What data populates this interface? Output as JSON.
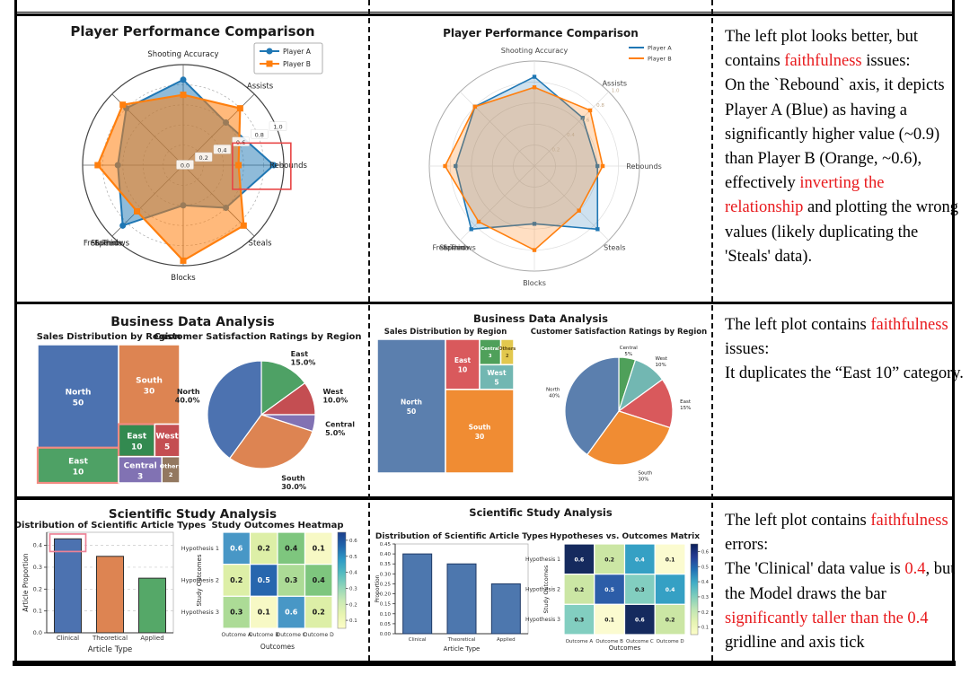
{
  "page": {
    "bg": "#ffffff",
    "border_color": "#000000",
    "accent_red": "#e8191c"
  },
  "notes": {
    "row1": {
      "segments": [
        {
          "t": "The left plot looks better, but contains "
        },
        {
          "t": "faithfulness",
          "red": true
        },
        {
          "t": " issues:\nOn the `Rebound` axis, it depicts Player A (Blue) as having a significantly higher value (~0.9) than Player B (Orange, ~0.6), effectively "
        },
        {
          "t": "inverting the relationship",
          "red": true
        },
        {
          "t": " and plotting the wrong values (likely duplicating the 'Steals' data)."
        }
      ]
    },
    "row2": {
      "segments": [
        {
          "t": "The left plot contains "
        },
        {
          "t": "faithfulness",
          "red": true
        },
        {
          "t": " issues:\nIt duplicates the “East 10” category."
        }
      ]
    },
    "row3": {
      "segments": [
        {
          "t": "The left plot contains "
        },
        {
          "t": "faithfulness",
          "red": true
        },
        {
          "t": " errors:\nThe 'Clinical' data value is "
        },
        {
          "t": "0.4",
          "red": true
        },
        {
          "t": ", but the Model draws the bar "
        },
        {
          "t": "significantly taller than the 0.4",
          "red": true
        },
        {
          "t": " gridline and axis tick"
        }
      ]
    }
  },
  "chart_data": [
    {
      "id": "radar-model",
      "type": "radar",
      "title": "Player Performance Comparison",
      "axes": [
        "Shooting Accuracy",
        "Assists",
        "Rebounds",
        "Steals",
        "Blocks",
        "Stamina",
        "Speed",
        "Free Throws"
      ],
      "rticks": [
        0.0,
        0.2,
        0.4,
        0.6,
        0.8,
        1.0
      ],
      "rlim": [
        0,
        1
      ],
      "series": [
        {
          "name": "Player A",
          "color": "#1f77b4",
          "marker": "circle",
          "values": [
            0.85,
            0.6,
            0.9,
            0.6,
            0.4,
            0.85,
            0.65,
            0.8
          ]
        },
        {
          "name": "Player B",
          "color": "#ff7f0e",
          "marker": "square",
          "values": [
            0.7,
            0.8,
            0.55,
            0.85,
            0.95,
            0.65,
            0.85,
            0.85
          ]
        }
      ],
      "legend": {
        "labels": [
          "Player A",
          "Player B"
        ],
        "position": "upper-right",
        "boxed": true
      },
      "annotation_box": {
        "axis": "Rebounds",
        "color": "#e84545"
      }
    },
    {
      "id": "radar-reference",
      "type": "radar",
      "title": "Player Performance Comparison",
      "axes": [
        "Shooting Accuracy",
        "Assists",
        "Rebounds",
        "Steals",
        "Blocks",
        "Stamina",
        "Speed",
        "Free Throws"
      ],
      "rticks": [
        0.2,
        0.4,
        0.6,
        0.8,
        1.0
      ],
      "rlim": [
        0,
        1
      ],
      "series": [
        {
          "name": "Player A",
          "color": "#1f77b4",
          "marker": "square",
          "values": [
            0.85,
            0.65,
            0.6,
            0.85,
            0.55,
            0.85,
            0.75,
            0.8
          ]
        },
        {
          "name": "Player B",
          "color": "#ff7f0e",
          "marker": "square",
          "values": [
            0.75,
            0.75,
            0.65,
            0.6,
            0.8,
            0.75,
            0.85,
            0.8
          ]
        }
      ],
      "legend": {
        "labels": [
          "Player A",
          "Player B"
        ],
        "position": "upper-right",
        "boxed": false
      }
    },
    {
      "id": "business-model",
      "type": "figure",
      "title": "Business Data Analysis",
      "subplots": [
        {
          "type": "treemap",
          "title": "Sales Distribution by Region",
          "tiles": [
            {
              "label": "North",
              "value": 50,
              "color": "#4C72B0",
              "x": 0,
              "y": 0,
              "w": 0.57,
              "h": 0.745
            },
            {
              "label": "East",
              "value": 10,
              "color": "#4EA165",
              "x": 0,
              "y": 0.745,
              "w": 0.57,
              "h": 0.255,
              "highlight": true
            },
            {
              "label": "South",
              "value": 30,
              "color": "#DD8452",
              "x": 0.57,
              "y": 0,
              "w": 0.43,
              "h": 0.575
            },
            {
              "label": "East",
              "value": 10,
              "color": "#338A50",
              "x": 0.57,
              "y": 0.575,
              "w": 0.255,
              "h": 0.235,
              "highlight": true
            },
            {
              "label": "West",
              "value": 5,
              "color": "#C44E52",
              "x": 0.825,
              "y": 0.575,
              "w": 0.175,
              "h": 0.235
            },
            {
              "label": "Central",
              "value": 3,
              "color": "#8172B3",
              "x": 0.57,
              "y": 0.81,
              "w": 0.305,
              "h": 0.19
            },
            {
              "label": "Others",
              "value": 2,
              "color": "#937860",
              "x": 0.875,
              "y": 0.81,
              "w": 0.125,
              "h": 0.19
            }
          ],
          "highlight_color": "#F28B82"
        },
        {
          "type": "pie",
          "title": "Customer Satisfaction Ratings by Region",
          "start_angle": 90,
          "direction": "clockwise",
          "slices": [
            {
              "label": "East",
              "value": 15,
              "pct_label": "15.0%",
              "color": "#4EA165"
            },
            {
              "label": "West",
              "value": 10,
              "pct_label": "10.0%",
              "color": "#C44E52"
            },
            {
              "label": "Central",
              "value": 5,
              "pct_label": "5.0%",
              "color": "#8172B3"
            },
            {
              "label": "South",
              "value": 30,
              "pct_label": "30.0%",
              "color": "#DD8452"
            },
            {
              "label": "North",
              "value": 40,
              "pct_label": "40.0%",
              "color": "#4C72B0"
            }
          ]
        }
      ]
    },
    {
      "id": "business-reference",
      "type": "figure",
      "title": "Business Data Analysis",
      "subplots": [
        {
          "type": "treemap",
          "title": "Sales Distribution by Region",
          "tiles": [
            {
              "label": "North",
              "value": 50,
              "color": "#5B7FAE",
              "x": 0,
              "y": 0,
              "w": 0.5,
              "h": 1
            },
            {
              "label": "East",
              "value": 10,
              "color": "#D9595C",
              "x": 0.5,
              "y": 0,
              "w": 0.25,
              "h": 0.375
            },
            {
              "label": "Central",
              "value": 3,
              "color": "#4FA05A",
              "x": 0.75,
              "y": 0,
              "w": 0.155,
              "h": 0.19
            },
            {
              "label": "Others",
              "value": 2,
              "color": "#E2C84E",
              "x": 0.905,
              "y": 0,
              "w": 0.095,
              "h": 0.19,
              "text": "#5f4a10"
            },
            {
              "label": "West",
              "value": 5,
              "color": "#72B7B2",
              "x": 0.75,
              "y": 0.19,
              "w": 0.25,
              "h": 0.185
            },
            {
              "label": "South",
              "value": 30,
              "color": "#F08C33",
              "x": 0.5,
              "y": 0.375,
              "w": 0.5,
              "h": 0.625
            }
          ]
        },
        {
          "type": "pie",
          "title": "Customer Satisfaction Ratings by Region",
          "start_angle": 90,
          "direction": "clockwise",
          "slices": [
            {
              "label": "Central",
              "value": 5,
              "pct_label": "5%",
              "color": "#4FA05A"
            },
            {
              "label": "West",
              "value": 10,
              "pct_label": "10%",
              "color": "#72B7B2"
            },
            {
              "label": "East",
              "value": 15,
              "pct_label": "15%",
              "color": "#D9595C"
            },
            {
              "label": "South",
              "value": 30,
              "pct_label": "30%",
              "color": "#F08C33"
            },
            {
              "label": "North",
              "value": 40,
              "pct_label": "40%",
              "color": "#5B7FAE"
            }
          ]
        }
      ]
    },
    {
      "id": "science-model",
      "type": "figure",
      "title": "Scientific Study Analysis",
      "subplots": [
        {
          "type": "bar",
          "title": "Distribution of Scientific Article Types",
          "xlabel": "Article Type",
          "ylabel": "Article Proportion",
          "categories": [
            "Clinical",
            "Theoretical",
            "Applied"
          ],
          "values": [
            0.43,
            0.35,
            0.25
          ],
          "colors": [
            "#4C72B0",
            "#DD8452",
            "#55A868"
          ],
          "edge_color": "#2f2f2f",
          "yticks": [
            0.0,
            0.1,
            0.2,
            0.3,
            0.4
          ],
          "ymax": 0.46,
          "grid": "dashed",
          "highlight_box": {
            "category": "Clinical",
            "y0": 0.372,
            "y1": 0.452,
            "color": "#ED8296"
          }
        },
        {
          "type": "heatmap",
          "title": "Study Outcomes Heatmap",
          "xlabel": "Outcomes",
          "ylabel": "Study Outcomes",
          "rows": [
            "Hypothesis 1",
            "Hypothesis 2",
            "Hypothesis 3"
          ],
          "cols": [
            "Outcome A",
            "Outcome B",
            "Outcome C",
            "Outcome D"
          ],
          "values": [
            [
              0.6,
              0.2,
              0.4,
              0.1
            ],
            [
              0.2,
              0.5,
              0.3,
              0.4
            ],
            [
              0.3,
              0.1,
              0.6,
              0.2
            ]
          ],
          "cmap": {
            "0.1": "#F7F9C5",
            "0.2": "#DDEFA7",
            "0.3": "#ACDB96",
            "0.4": "#7EC67E",
            "0.5": "#2766AE",
            "0.6": "#4897C6"
          },
          "white_text_min": 0.5,
          "colorbar": {
            "ticks": [
              0.1,
              0.2,
              0.3,
              0.4,
              0.5,
              0.6
            ],
            "stops": [
              "#FDFDC8",
              "#E9F5B1",
              "#C9E9B4",
              "#91D5B9",
              "#55BCC0",
              "#2E9BC6",
              "#2166AC",
              "#1C3F8C"
            ]
          }
        }
      ]
    },
    {
      "id": "science-reference",
      "type": "figure",
      "title": "Scientific Study Analysis",
      "subplots": [
        {
          "type": "bar",
          "title": "Distribution of Scientific Article Types",
          "xlabel": "Article Type",
          "ylabel": "Proportion",
          "categories": [
            "Clinical",
            "Theoretical",
            "Applied"
          ],
          "values": [
            0.4,
            0.35,
            0.25
          ],
          "colors": [
            "#4d77ae",
            "#4d77ae",
            "#4d77ae"
          ],
          "edge_color": "#1f3a66",
          "yticks": [
            0.0,
            0.05,
            0.1,
            0.15,
            0.2,
            0.25,
            0.3,
            0.35,
            0.4,
            0.45
          ],
          "ymax": 0.45,
          "grid": "none"
        },
        {
          "type": "heatmap",
          "title": "Hypotheses vs. Outcomes Matrix",
          "xlabel": "Outcomes",
          "ylabel": "Study Outcomes",
          "rows": [
            "Hypothesis 1",
            "Hypothesis 2",
            "Hypothesis 3"
          ],
          "cols": [
            "Outcome A",
            "Outcome B",
            "Outcome C",
            "Outcome D"
          ],
          "values": [
            [
              0.6,
              0.2,
              0.4,
              0.1
            ],
            [
              0.2,
              0.5,
              0.3,
              0.4
            ],
            [
              0.3,
              0.1,
              0.6,
              0.2
            ]
          ],
          "cmap": {
            "0.1": "#FBFBD0",
            "0.2": "#CBE6A4",
            "0.3": "#82CEC0",
            "0.4": "#35A0C4",
            "0.5": "#2C5DA8",
            "0.6": "#152A5E"
          },
          "white_text_min": 0.4,
          "colorbar": {
            "ticks": [
              0.1,
              0.2,
              0.3,
              0.4,
              0.5,
              0.6
            ],
            "stops": [
              "#FDFDC8",
              "#E4F3B2",
              "#BCE4B5",
              "#7CCCBC",
              "#41AEC6",
              "#2272B5",
              "#253C94",
              "#0B1E58"
            ]
          }
        }
      ]
    }
  ]
}
